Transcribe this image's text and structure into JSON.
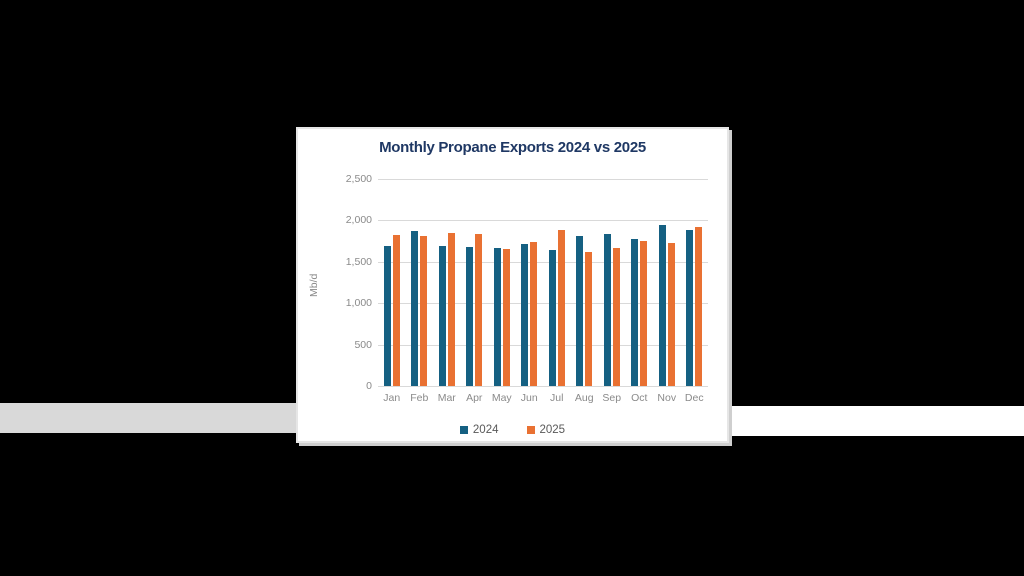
{
  "page": {
    "background_color": "#000000"
  },
  "decor": {
    "left_strip_color": "#d9d9d9",
    "right_strip_color": "#ffffff"
  },
  "panel": {
    "background_color": "#ffffff",
    "shadow_color": "#cfcfcf"
  },
  "text_colors": {
    "title": "#1f3864",
    "axis_labels": "#8a8a8a",
    "legend_labels": "#595959"
  },
  "chart_data": {
    "type": "bar",
    "title": "Monthly Propane Exports 2024 vs 2025",
    "xlabel": "",
    "ylabel": "Mb/d",
    "categories": [
      "Jan",
      "Feb",
      "Mar",
      "Apr",
      "May",
      "Jun",
      "Jul",
      "Aug",
      "Sep",
      "Oct",
      "Nov",
      "Dec"
    ],
    "series": [
      {
        "name": "2024",
        "color": "#156082",
        "values": [
          1690,
          1870,
          1690,
          1680,
          1670,
          1720,
          1640,
          1810,
          1830,
          1770,
          1950,
          1880
        ]
      },
      {
        "name": "2025",
        "color": "#E97132",
        "values": [
          1820,
          1810,
          1850,
          1840,
          1660,
          1740,
          1880,
          1620,
          1670,
          1750,
          1730,
          1920
        ]
      }
    ],
    "ylim": [
      0,
      2500
    ],
    "ytick_step": 500,
    "ytick_labels": [
      "0",
      "500",
      "1,000",
      "1,500",
      "2,000",
      "2,500"
    ],
    "grid": true,
    "gridline_color": "#d9d9d9",
    "legend_position": "bottom"
  }
}
